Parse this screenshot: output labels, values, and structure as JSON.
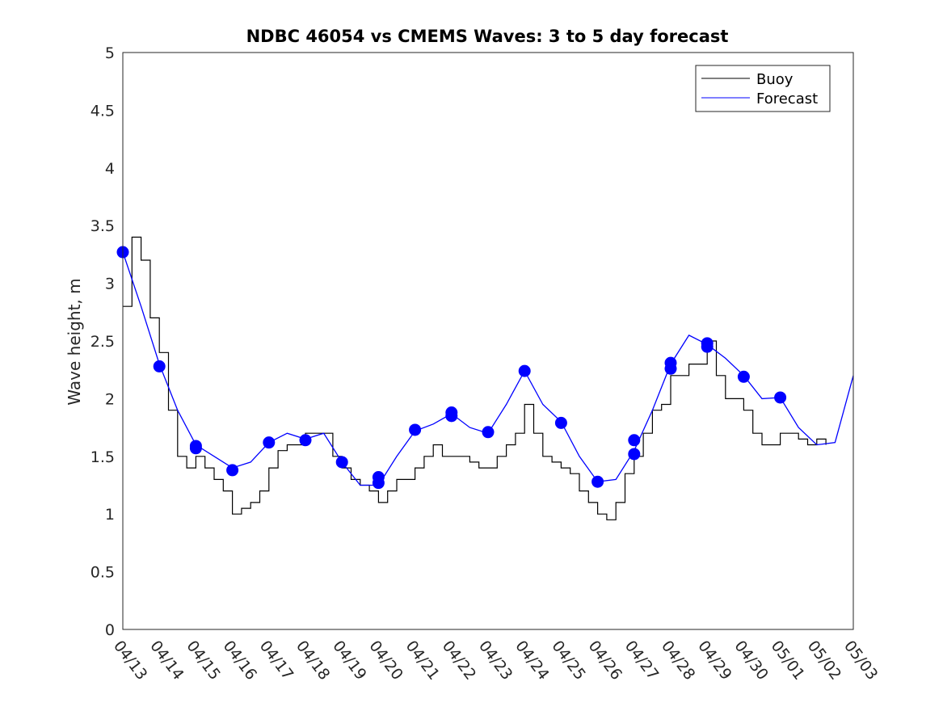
{
  "chart_data": {
    "type": "line",
    "title": "NDBC 46054 vs CMEMS Waves: 3 to 5 day forecast",
    "xlabel": "",
    "ylabel": "Wave height, m",
    "ylim": [
      0,
      5
    ],
    "xlim": [
      "2019-04-13",
      "2019-05-03"
    ],
    "yticks": [
      "0",
      "0.5",
      "1",
      "1.5",
      "2",
      "2.5",
      "3",
      "3.5",
      "4",
      "4.5",
      "5"
    ],
    "xticks": [
      "04/13",
      "04/14",
      "04/15",
      "04/16",
      "04/17",
      "04/18",
      "04/19",
      "04/20",
      "04/21",
      "04/22",
      "04/23",
      "04/24",
      "04/25",
      "04/26",
      "04/27",
      "04/28",
      "04/29",
      "04/30",
      "05/01",
      "05/02",
      "05/03"
    ],
    "grid": false,
    "legend": {
      "position": "top-right",
      "entries": [
        "Buoy",
        "Forecast"
      ]
    },
    "colors": {
      "buoy": "#000000",
      "forecast": "#0000ff"
    },
    "series": [
      {
        "name": "Buoy",
        "color": "#000000",
        "x": [
          "04/13 00:00",
          "04/13 06:00",
          "04/13 12:00",
          "04/13 18:00",
          "04/14 00:00",
          "04/14 06:00",
          "04/14 12:00",
          "04/14 18:00",
          "04/15 00:00",
          "04/15 06:00",
          "04/15 12:00",
          "04/15 18:00",
          "04/16 00:00",
          "04/16 06:00",
          "04/16 12:00",
          "04/16 18:00",
          "04/17 00:00",
          "04/17 06:00",
          "04/17 12:00",
          "04/17 18:00",
          "04/18 00:00",
          "04/18 06:00",
          "04/18 12:00",
          "04/18 18:00",
          "04/19 00:00",
          "04/19 06:00",
          "04/19 12:00",
          "04/19 18:00",
          "04/20 00:00",
          "04/20 06:00",
          "04/20 12:00",
          "04/20 18:00",
          "04/21 00:00",
          "04/21 06:00",
          "04/21 12:00",
          "04/21 18:00",
          "04/22 00:00",
          "04/22 06:00",
          "04/22 12:00",
          "04/22 18:00",
          "04/23 00:00",
          "04/23 06:00",
          "04/23 12:00",
          "04/23 18:00",
          "04/24 00:00",
          "04/24 06:00",
          "04/24 12:00",
          "04/24 18:00",
          "04/25 00:00",
          "04/25 06:00",
          "04/25 12:00",
          "04/25 18:00",
          "04/26 00:00",
          "04/26 06:00",
          "04/26 12:00",
          "04/26 18:00",
          "04/27 00:00",
          "04/27 06:00",
          "04/27 12:00",
          "04/27 18:00",
          "04/28 00:00",
          "04/28 06:00",
          "04/28 12:00",
          "04/28 18:00",
          "04/29 00:00",
          "04/29 06:00",
          "04/29 12:00",
          "04/29 18:00",
          "04/30 00:00",
          "04/30 06:00",
          "04/30 12:00",
          "04/30 18:00",
          "05/01 00:00",
          "05/01 06:00",
          "05/01 12:00",
          "05/01 18:00",
          "05/02 00:00",
          "05/02 06:00"
        ],
        "values": [
          2.8,
          3.4,
          3.2,
          2.7,
          2.4,
          1.9,
          1.5,
          1.4,
          1.5,
          1.4,
          1.3,
          1.2,
          1.0,
          1.05,
          1.1,
          1.2,
          1.4,
          1.55,
          1.6,
          1.6,
          1.7,
          1.7,
          1.7,
          1.5,
          1.4,
          1.3,
          1.25,
          1.2,
          1.1,
          1.2,
          1.3,
          1.3,
          1.4,
          1.5,
          1.6,
          1.5,
          1.5,
          1.5,
          1.45,
          1.4,
          1.4,
          1.5,
          1.6,
          1.7,
          1.95,
          1.7,
          1.5,
          1.45,
          1.4,
          1.35,
          1.2,
          1.1,
          1.0,
          0.95,
          1.1,
          1.35,
          1.5,
          1.7,
          1.9,
          1.95,
          2.2,
          2.2,
          2.3,
          2.3,
          2.5,
          2.2,
          2.0,
          2.0,
          1.9,
          1.7,
          1.6,
          1.6,
          1.7,
          1.7,
          1.65,
          1.6,
          1.65,
          1.6
        ]
      },
      {
        "name": "Forecast",
        "color": "#0000ff",
        "x": [
          "04/13 00:00",
          "04/13 12:00",
          "04/14 00:00",
          "04/14 12:00",
          "04/15 00:00",
          "04/15 12:00",
          "04/16 00:00",
          "04/16 12:00",
          "04/17 00:00",
          "04/17 12:00",
          "04/18 00:00",
          "04/18 12:00",
          "04/19 00:00",
          "04/19 12:00",
          "04/20 00:00",
          "04/20 12:00",
          "04/21 00:00",
          "04/21 12:00",
          "04/22 00:00",
          "04/22 12:00",
          "04/23 00:00",
          "04/23 12:00",
          "04/24 00:00",
          "04/24 12:00",
          "04/25 00:00",
          "04/25 12:00",
          "04/26 00:00",
          "04/26 12:00",
          "04/27 00:00",
          "04/27 12:00",
          "04/28 00:00",
          "04/28 12:00",
          "04/29 00:00",
          "04/29 12:00",
          "04/30 00:00",
          "04/30 12:00",
          "05/01 00:00",
          "05/01 12:00",
          "05/02 00:00",
          "05/02 12:00",
          "05/03 00:00"
        ],
        "values": [
          3.27,
          2.8,
          2.3,
          1.9,
          1.6,
          1.5,
          1.4,
          1.45,
          1.62,
          1.7,
          1.65,
          1.7,
          1.45,
          1.25,
          1.25,
          1.5,
          1.72,
          1.78,
          1.87,
          1.75,
          1.7,
          1.95,
          2.24,
          1.95,
          1.8,
          1.5,
          1.28,
          1.3,
          1.55,
          1.9,
          2.3,
          2.55,
          2.47,
          2.35,
          2.2,
          2.0,
          2.01,
          1.75,
          1.6,
          1.62,
          2.2
        ]
      }
    ],
    "markers": {
      "name": "Forecast",
      "x": [
        "04/13 00:00",
        "04/14 00:00",
        "04/15 00:00",
        "04/15 00:00",
        "04/16 00:00",
        "04/17 00:00",
        "04/18 00:00",
        "04/19 00:00",
        "04/20 00:00",
        "04/20 00:00",
        "04/21 00:00",
        "04/22 00:00",
        "04/22 00:00",
        "04/23 00:00",
        "04/24 00:00",
        "04/25 00:00",
        "04/26 00:00",
        "04/27 00:00",
        "04/27 00:00",
        "04/28 00:00",
        "04/28 00:00",
        "04/29 00:00",
        "04/29 00:00",
        "04/30 00:00",
        "05/01 00:00"
      ],
      "values": [
        3.27,
        2.28,
        1.59,
        1.57,
        1.38,
        1.62,
        1.64,
        1.45,
        1.32,
        1.27,
        1.73,
        1.88,
        1.85,
        1.71,
        2.24,
        1.79,
        1.28,
        1.64,
        1.52,
        2.31,
        2.26,
        2.48,
        2.45,
        2.19,
        2.01
      ]
    }
  }
}
